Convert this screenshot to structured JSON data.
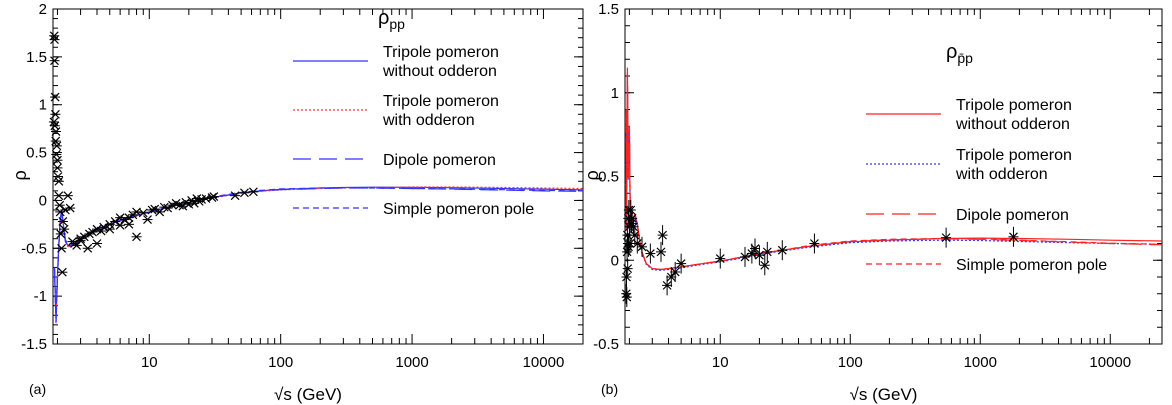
{
  "chart_data": [
    {
      "type": "line",
      "panel_label": "(a)",
      "title": "ρpp",
      "title_main": "ρ",
      "title_sub": "pp",
      "xlabel": "√s (GeV)",
      "ylabel": "ρ",
      "xscale": "log",
      "xlim": [
        1.85,
        20000
      ],
      "ylim": [
        -1.5,
        2
      ],
      "yticks": [
        -1.5,
        -1,
        -0.5,
        0,
        0.5,
        1,
        1.5,
        2
      ],
      "ytick_labels": [
        "-1.5",
        "-1",
        "-0.5",
        "0",
        "0.5",
        "1",
        "1.5",
        "2"
      ],
      "xticks": [
        10,
        100,
        1000,
        10000
      ],
      "xtick_labels": [
        "10",
        "100",
        "1000",
        "10000"
      ],
      "legend_position": "top-right",
      "series": [
        {
          "name": "Tripole pomeron without odderon",
          "color": "#3333ff",
          "dash": "solid",
          "x": [
            1.9,
            1.95,
            2.0,
            2.05,
            2.1,
            2.15,
            2.2,
            2.3,
            2.4,
            2.5,
            2.7,
            3.0,
            3.5,
            4,
            5,
            6,
            8,
            10,
            15,
            20,
            30,
            50,
            70,
            100,
            200,
            300,
            500,
            1000,
            2000,
            5000,
            10000,
            20000
          ],
          "y": [
            -0.7,
            -1.25,
            -0.8,
            -0.45,
            -0.2,
            -0.1,
            -0.22,
            -0.42,
            -0.47,
            -0.48,
            -0.45,
            -0.4,
            -0.34,
            -0.3,
            -0.25,
            -0.21,
            -0.16,
            -0.12,
            -0.06,
            -0.02,
            0.03,
            0.08,
            0.1,
            0.115,
            0.13,
            0.135,
            0.138,
            0.137,
            0.133,
            0.125,
            0.118,
            0.11
          ]
        },
        {
          "name": "Tripole pomeron with odderon",
          "color": "#ff3333",
          "dash": "dotted",
          "x": [
            1.9,
            1.95,
            2.0,
            2.05,
            2.1,
            2.15,
            2.2,
            2.3,
            2.4,
            2.5,
            2.7,
            3.0,
            3.5,
            4,
            5,
            6,
            8,
            10,
            15,
            20,
            30,
            50,
            70,
            100,
            200,
            300,
            500,
            1000,
            2000,
            5000,
            10000,
            20000
          ],
          "y": [
            -0.75,
            -1.3,
            -0.85,
            -0.48,
            -0.22,
            -0.12,
            -0.24,
            -0.43,
            -0.48,
            -0.485,
            -0.455,
            -0.405,
            -0.345,
            -0.305,
            -0.255,
            -0.215,
            -0.165,
            -0.125,
            -0.065,
            -0.025,
            0.025,
            0.075,
            0.095,
            0.11,
            0.125,
            0.13,
            0.135,
            0.14,
            0.14,
            0.135,
            0.13,
            0.125
          ]
        },
        {
          "name": "Dipole pomeron",
          "color": "#3333ff",
          "dash": "long-dash",
          "x": [
            1.9,
            1.95,
            2.0,
            2.05,
            2.1,
            2.15,
            2.2,
            2.3,
            2.4,
            2.5,
            2.7,
            3.0,
            3.5,
            4,
            5,
            6,
            8,
            10,
            15,
            20,
            30,
            50,
            70,
            100,
            200,
            300,
            500,
            1000,
            2000,
            5000,
            10000,
            20000
          ],
          "y": [
            -0.72,
            -1.28,
            -0.82,
            -0.46,
            -0.21,
            -0.11,
            -0.23,
            -0.43,
            -0.475,
            -0.48,
            -0.45,
            -0.4,
            -0.34,
            -0.3,
            -0.25,
            -0.21,
            -0.16,
            -0.12,
            -0.06,
            -0.02,
            0.03,
            0.078,
            0.098,
            0.112,
            0.125,
            0.13,
            0.13,
            0.125,
            0.118,
            0.108,
            0.1,
            0.095
          ]
        },
        {
          "name": "Simple pomeron pole",
          "color": "#3333ff",
          "dash": "short-dash",
          "x": [
            1.9,
            1.95,
            2.0,
            2.05,
            2.1,
            2.15,
            2.2,
            2.3,
            2.4,
            2.5,
            2.7,
            3.0,
            3.5,
            4,
            5,
            6,
            8,
            10,
            15,
            20,
            30,
            50,
            70,
            100,
            200,
            300,
            500,
            1000,
            2000,
            5000,
            10000,
            20000
          ],
          "y": [
            -0.7,
            -1.2,
            -0.78,
            -0.44,
            -0.2,
            -0.1,
            -0.21,
            -0.41,
            -0.46,
            -0.47,
            -0.445,
            -0.395,
            -0.335,
            -0.295,
            -0.245,
            -0.205,
            -0.155,
            -0.115,
            -0.055,
            -0.015,
            0.035,
            0.085,
            0.105,
            0.12,
            0.13,
            0.132,
            0.13,
            0.125,
            0.12,
            0.112,
            0.105,
            0.1
          ]
        }
      ],
      "data_points": {
        "x": [
          1.88,
          1.89,
          1.9,
          1.9,
          1.91,
          1.92,
          1.93,
          1.94,
          1.95,
          1.96,
          1.98,
          2.0,
          2.0,
          2.02,
          2.05,
          2.05,
          2.08,
          2.1,
          2.12,
          2.15,
          2.18,
          2.2,
          2.25,
          2.3,
          2.4,
          2.5,
          2.6,
          2.7,
          2.8,
          3.0,
          3.0,
          3.2,
          3.4,
          3.5,
          3.7,
          4.0,
          4.0,
          4.3,
          4.5,
          5.0,
          5.0,
          5.5,
          6.0,
          6.0,
          6.5,
          7.0,
          7.0,
          7.5,
          8.0,
          8.0,
          9.0,
          9.7,
          10.5,
          11.0,
          12.0,
          13.0,
          13.8,
          15.0,
          16.0,
          17.0,
          18.0,
          19.0,
          20.0,
          21.0,
          22.0,
          23.0,
          24.0,
          25.0,
          27.0,
          30.0,
          31.0,
          45.0,
          53.0,
          62.0
        ],
        "y": [
          0.82,
          1.72,
          1.68,
          1.46,
          0.78,
          1.08,
          0.9,
          0.62,
          0.72,
          0.48,
          0.57,
          0.34,
          0.42,
          0.25,
          0.2,
          0.05,
          -0.05,
          -0.12,
          -0.35,
          -0.5,
          -0.75,
          -0.22,
          -0.3,
          -0.1,
          0.05,
          -0.08,
          -0.43,
          -0.45,
          -0.47,
          -0.42,
          -0.4,
          -0.38,
          -0.5,
          -0.35,
          -0.33,
          -0.3,
          -0.45,
          -0.32,
          -0.28,
          -0.3,
          -0.25,
          -0.22,
          -0.26,
          -0.18,
          -0.2,
          -0.25,
          -0.18,
          -0.15,
          -0.38,
          -0.12,
          -0.13,
          -0.2,
          -0.1,
          -0.09,
          -0.12,
          -0.07,
          -0.08,
          -0.05,
          -0.03,
          -0.05,
          -0.06,
          -0.02,
          -0.04,
          0.0,
          -0.03,
          0.02,
          -0.01,
          0.01,
          0.02,
          0.03,
          0.04,
          0.05,
          0.08,
          0.09
        ]
      }
    },
    {
      "type": "line",
      "panel_label": "(b)",
      "title": "ρp̄p",
      "title_main": "ρ",
      "title_sub": "p̄p",
      "xlabel": "√s (GeV)",
      "ylabel": "ρ",
      "xscale": "log",
      "xlim": [
        1.85,
        25000
      ],
      "ylim": [
        -0.5,
        1.5
      ],
      "yticks": [
        -0.5,
        0,
        0.5,
        1,
        1.5
      ],
      "ytick_labels": [
        "-0.5",
        "0",
        "0.5",
        "1",
        "1.5"
      ],
      "xticks": [
        10,
        100,
        1000,
        10000
      ],
      "xtick_labels": [
        "10",
        "100",
        "1000",
        "10000"
      ],
      "legend_position": "top-right",
      "series": [
        {
          "name": "Tripole pomeron without odderon",
          "color": "#ff2222",
          "dash": "solid",
          "x": [
            1.88,
            1.9,
            1.93,
            1.96,
            2.0,
            2.03,
            2.06,
            2.1,
            2.15,
            2.2,
            2.3,
            2.4,
            2.5,
            2.7,
            3.0,
            3.5,
            4,
            5,
            6,
            8,
            10,
            15,
            20,
            30,
            50,
            100,
            200,
            500,
            1000,
            2000,
            5000,
            10000,
            25000
          ],
          "y": [
            0.9,
            0.2,
            1.15,
            0.5,
            0.8,
            0.3,
            0.25,
            0.22,
            0.25,
            0.28,
            0.22,
            0.12,
            0.05,
            -0.02,
            -0.05,
            -0.055,
            -0.05,
            -0.04,
            -0.03,
            -0.015,
            -0.005,
            0.02,
            0.04,
            0.06,
            0.085,
            0.11,
            0.12,
            0.13,
            0.132,
            0.13,
            0.125,
            0.12,
            0.115
          ]
        },
        {
          "name": "Tripole pomeron with odderon",
          "color": "#3333ff",
          "dash": "dotted",
          "x": [
            1.88,
            1.9,
            1.93,
            1.96,
            2.0,
            2.03,
            2.06,
            2.1,
            2.15,
            2.2,
            2.3,
            2.4,
            2.5,
            2.7,
            3.0,
            3.5,
            4,
            5,
            6,
            8,
            10,
            15,
            20,
            30,
            50,
            100,
            200,
            500,
            1000,
            2000,
            5000,
            10000,
            25000
          ],
          "y": [
            0.85,
            0.18,
            1.1,
            0.48,
            0.78,
            0.28,
            0.24,
            0.21,
            0.24,
            0.27,
            0.21,
            0.11,
            0.04,
            -0.025,
            -0.055,
            -0.06,
            -0.055,
            -0.045,
            -0.035,
            -0.02,
            -0.01,
            0.015,
            0.035,
            0.055,
            0.08,
            0.105,
            0.115,
            0.12,
            0.118,
            0.112,
            0.105,
            0.1,
            0.095
          ]
        },
        {
          "name": "Dipole pomeron",
          "color": "#ff2222",
          "dash": "long-dash",
          "x": [
            1.88,
            1.9,
            1.93,
            1.96,
            2.0,
            2.03,
            2.06,
            2.1,
            2.15,
            2.2,
            2.3,
            2.4,
            2.5,
            2.7,
            3.0,
            3.5,
            4,
            5,
            6,
            8,
            10,
            15,
            20,
            30,
            50,
            100,
            200,
            500,
            1000,
            2000,
            5000,
            10000,
            25000
          ],
          "y": [
            0.88,
            0.19,
            1.12,
            0.49,
            0.79,
            0.29,
            0.245,
            0.215,
            0.245,
            0.275,
            0.215,
            0.115,
            0.045,
            -0.02,
            -0.05,
            -0.055,
            -0.05,
            -0.04,
            -0.03,
            -0.015,
            -0.005,
            0.02,
            0.04,
            0.06,
            0.085,
            0.112,
            0.122,
            0.128,
            0.125,
            0.118,
            0.108,
            0.1,
            0.092
          ]
        },
        {
          "name": "Simple pomeron pole",
          "color": "#ff2222",
          "dash": "short-dash",
          "x": [
            1.88,
            1.9,
            1.93,
            1.96,
            2.0,
            2.03,
            2.06,
            2.1,
            2.15,
            2.2,
            2.3,
            2.4,
            2.5,
            2.7,
            3.0,
            3.5,
            4,
            5,
            6,
            8,
            10,
            15,
            20,
            30,
            50,
            100,
            200,
            500,
            1000,
            2000,
            5000,
            10000,
            25000
          ],
          "y": [
            0.86,
            0.2,
            1.1,
            0.5,
            0.8,
            0.3,
            0.25,
            0.22,
            0.25,
            0.28,
            0.22,
            0.12,
            0.05,
            -0.02,
            -0.05,
            -0.055,
            -0.05,
            -0.04,
            -0.03,
            -0.015,
            -0.005,
            0.02,
            0.04,
            0.06,
            0.09,
            0.115,
            0.125,
            0.13,
            0.128,
            0.12,
            0.11,
            0.102,
            0.095
          ]
        }
      ],
      "data_points": {
        "x": [
          1.89,
          1.9,
          1.91,
          1.92,
          1.93,
          1.94,
          1.95,
          1.96,
          1.97,
          1.98,
          2.0,
          2.02,
          2.05,
          2.08,
          2.1,
          2.15,
          2.2,
          2.3,
          2.5,
          2.9,
          3.5,
          3.6,
          3.9,
          4.2,
          4.5,
          5.0,
          10.0,
          15.5,
          17.5,
          18.5,
          20.0,
          22.0,
          23.0,
          30.0,
          53.0,
          546.0,
          1800.0
        ],
        "y": [
          -0.2,
          -0.1,
          -0.22,
          0.05,
          0.15,
          -0.05,
          0.1,
          0.25,
          0.08,
          0.3,
          0.2,
          0.1,
          0.3,
          0.22,
          0.25,
          0.2,
          0.15,
          0.1,
          0.08,
          0.04,
          0.05,
          0.15,
          -0.15,
          -0.1,
          -0.07,
          -0.02,
          0.01,
          0.02,
          0.04,
          0.07,
          0.03,
          -0.03,
          0.05,
          0.06,
          0.1,
          0.135,
          0.14
        ]
      }
    }
  ]
}
